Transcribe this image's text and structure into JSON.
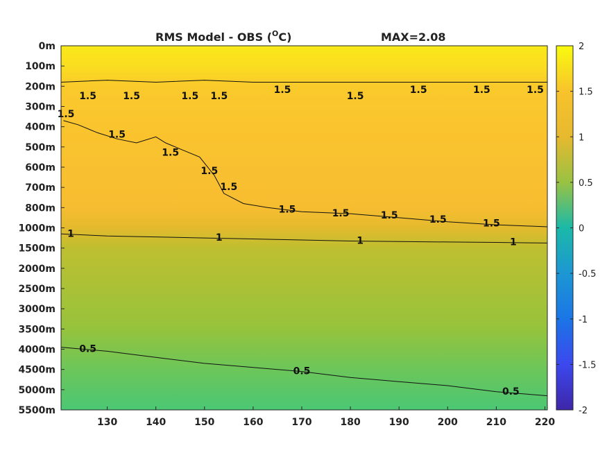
{
  "chart_data": {
    "type": "heatmap",
    "title": "RMS Model - OBS (",
    "title_unit": "O",
    "title_unit_suffix": "C)",
    "max_label": "MAX=2.08",
    "x": {
      "ticks": [
        130,
        140,
        150,
        160,
        170,
        180,
        190,
        200,
        210,
        220
      ],
      "range": [
        120.5,
        220.5
      ]
    },
    "y": {
      "tick_labels": [
        "0m",
        "100m",
        "200m",
        "300m",
        "400m",
        "500m",
        "600m",
        "700m",
        "800m",
        "1000m",
        "1500m",
        "2000m",
        "2500m",
        "3000m",
        "3500m",
        "4000m",
        "4500m",
        "5000m",
        "5500m"
      ],
      "nonuniform": true
    },
    "colorbar": {
      "range": [
        -2,
        2
      ],
      "ticks": [
        2,
        1.5,
        1,
        0.5,
        0,
        -0.5,
        -1,
        -1.5,
        -2
      ],
      "tick_labels": [
        "2",
        "1.5",
        "1",
        "0.5",
        "0",
        "-0.5",
        "-1",
        "-1.5",
        "-2"
      ],
      "colormap": "parula"
    },
    "value_profile_by_depth_level": [
      {
        "level": 0,
        "value": 1.85
      },
      {
        "level": 1,
        "value": 1.75
      },
      {
        "level": 2,
        "value": 1.6
      },
      {
        "level": 4,
        "value": 1.55
      },
      {
        "level": 8,
        "value": 1.45
      },
      {
        "level": 9,
        "value": 1.2
      },
      {
        "level": 10,
        "value": 0.95
      },
      {
        "level": 12,
        "value": 0.85
      },
      {
        "level": 14,
        "value": 0.75
      },
      {
        "level": 16,
        "value": 0.6
      },
      {
        "level": 18,
        "value": 0.45
      }
    ],
    "contours": [
      {
        "level": 1.5,
        "points": [
          [
            120.5,
            1.8
          ],
          [
            130,
            1.7
          ],
          [
            140,
            1.8
          ],
          [
            150,
            1.7
          ],
          [
            160,
            1.8
          ],
          [
            170,
            1.8
          ],
          [
            180,
            1.8
          ],
          [
            190,
            1.8
          ],
          [
            200,
            1.8
          ],
          [
            210,
            1.8
          ],
          [
            220.5,
            1.8
          ]
        ],
        "labels": [
          {
            "x": 126,
            "y": 2.5
          },
          {
            "x": 135,
            "y": 2.5
          },
          {
            "x": 147,
            "y": 2.5
          },
          {
            "x": 153,
            "y": 2.5
          },
          {
            "x": 166,
            "y": 2.2
          },
          {
            "x": 181,
            "y": 2.5
          },
          {
            "x": 194,
            "y": 2.2
          },
          {
            "x": 207,
            "y": 2.2
          },
          {
            "x": 218,
            "y": 2.2
          }
        ]
      },
      {
        "level": 1.5,
        "points": [
          [
            121,
            3.7
          ],
          [
            124,
            3.9
          ],
          [
            128,
            4.3
          ],
          [
            132,
            4.6
          ],
          [
            136,
            4.8
          ],
          [
            140,
            4.5
          ],
          [
            142,
            4.8
          ],
          [
            145,
            5.1
          ],
          [
            149,
            5.5
          ],
          [
            152,
            6.4
          ],
          [
            154,
            7.3
          ],
          [
            158,
            7.8
          ],
          [
            163,
            8.0
          ],
          [
            170,
            8.2
          ],
          [
            180,
            8.3
          ],
          [
            190,
            8.5
          ],
          [
            200,
            8.7
          ],
          [
            210,
            8.85
          ],
          [
            220.5,
            8.95
          ]
        ],
        "labels": [
          {
            "x": 121.5,
            "y": 3.4
          },
          {
            "x": 132,
            "y": 4.4
          },
          {
            "x": 143,
            "y": 5.3
          },
          {
            "x": 151,
            "y": 6.2
          },
          {
            "x": 155,
            "y": 7.0
          },
          {
            "x": 167,
            "y": 8.1
          },
          {
            "x": 178,
            "y": 8.3
          },
          {
            "x": 188,
            "y": 8.4
          },
          {
            "x": 198,
            "y": 8.6
          },
          {
            "x": 209,
            "y": 8.8
          }
        ]
      },
      {
        "level": 1,
        "points": [
          [
            120.5,
            9.3
          ],
          [
            130,
            9.4
          ],
          [
            140,
            9.45
          ],
          [
            150,
            9.5
          ],
          [
            160,
            9.55
          ],
          [
            170,
            9.6
          ],
          [
            180,
            9.65
          ],
          [
            190,
            9.68
          ],
          [
            200,
            9.7
          ],
          [
            210,
            9.72
          ],
          [
            220.5,
            9.75
          ]
        ],
        "labels": [
          {
            "x": 122.5,
            "y": 9.3
          },
          {
            "x": 153,
            "y": 9.5
          },
          {
            "x": 182,
            "y": 9.65
          },
          {
            "x": 213.5,
            "y": 9.72
          }
        ]
      },
      {
        "level": 0.5,
        "points": [
          [
            120.5,
            14.9
          ],
          [
            130,
            15.1
          ],
          [
            140,
            15.4
          ],
          [
            150,
            15.7
          ],
          [
            160,
            15.9
          ],
          [
            170,
            16.1
          ],
          [
            180,
            16.4
          ],
          [
            190,
            16.6
          ],
          [
            200,
            16.8
          ],
          [
            210,
            17.1
          ],
          [
            220.5,
            17.3
          ]
        ],
        "labels": [
          {
            "x": 126,
            "y": 15.0
          },
          {
            "x": 170,
            "y": 16.1
          },
          {
            "x": 213,
            "y": 17.1
          }
        ]
      }
    ]
  }
}
